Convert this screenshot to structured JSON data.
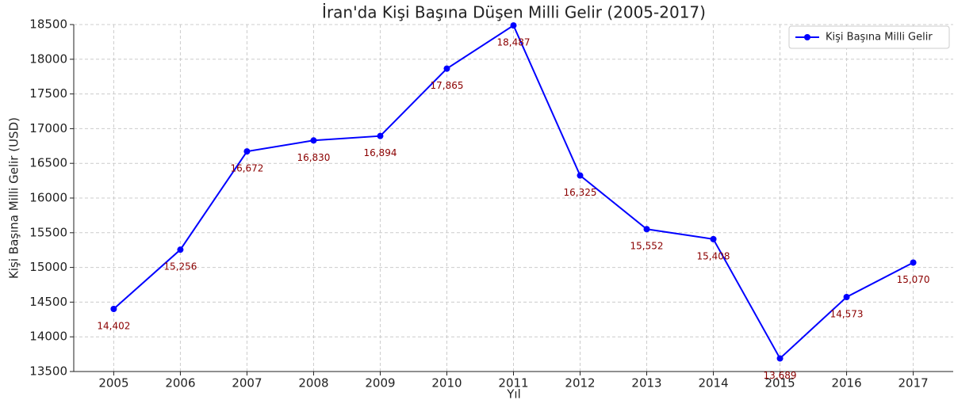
{
  "chart_data": {
    "type": "line",
    "title": "İran'da Kişi Başına Düşen Milli Gelir (2005-2017)",
    "x_label": "Yıl",
    "y_label": "Kişi Başına Milli Gelir (USD)",
    "x": [
      2005,
      2006,
      2007,
      2008,
      2009,
      2010,
      2011,
      2012,
      2013,
      2014,
      2015,
      2016,
      2017
    ],
    "series": [
      {
        "name": "Kişi Başına Milli Gelir",
        "color": "#0000ff",
        "values": [
          14402,
          15256,
          16672,
          16830,
          16894,
          17865,
          18487,
          16325,
          15552,
          15408,
          13689,
          14573,
          15070
        ],
        "value_labels": [
          "14,402",
          "15,256",
          "16,672",
          "16,830",
          "16,894",
          "17,865",
          "18,487",
          "16,325",
          "15,552",
          "15,408",
          "13,689",
          "14,573",
          "15,070"
        ]
      }
    ],
    "xlim": [
      2004.4,
      2017.6
    ],
    "xticks": [
      2005,
      2006,
      2007,
      2008,
      2009,
      2010,
      2011,
      2012,
      2013,
      2014,
      2015,
      2016,
      2017
    ],
    "ylim": [
      13500,
      18500
    ],
    "yticks": [
      13500,
      14000,
      14500,
      15000,
      15500,
      16000,
      16500,
      17000,
      17500,
      18000,
      18500
    ],
    "grid": true,
    "legend": "upper right"
  }
}
